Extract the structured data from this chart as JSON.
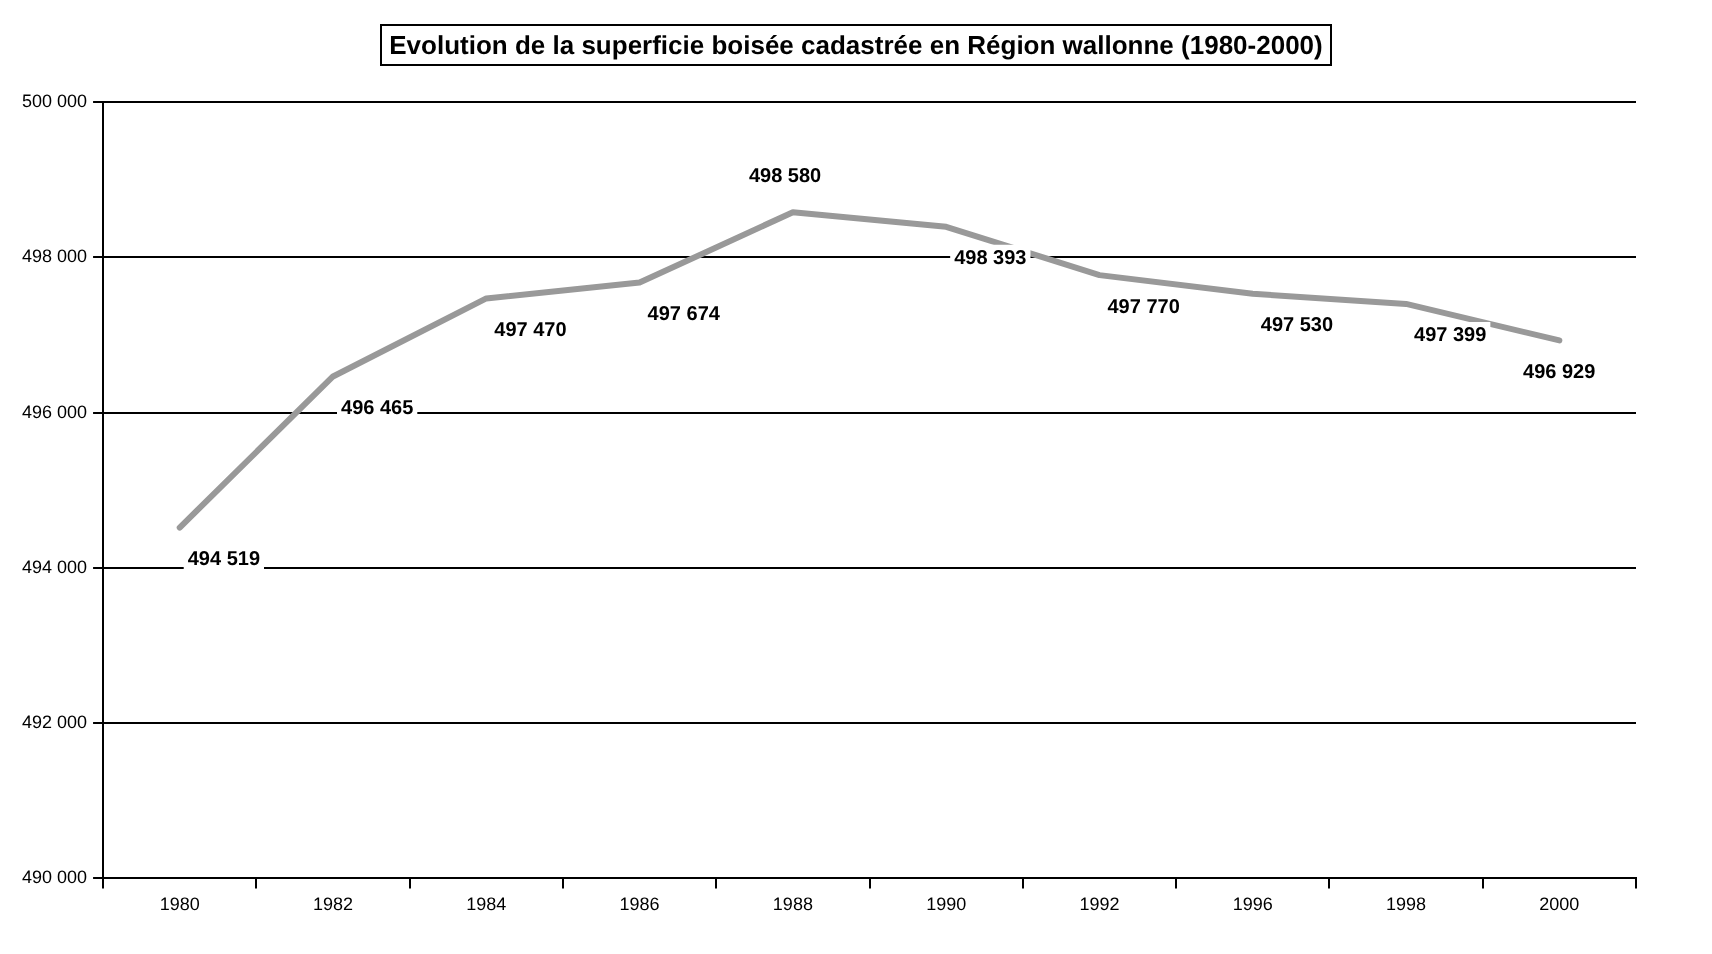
{
  "chart_data": {
    "type": "line",
    "title": "Evolution de la superficie boisée cadastrée en Région wallonne (1980-2000)",
    "categories": [
      "1980",
      "1982",
      "1984",
      "1986",
      "1988",
      "1990",
      "1992",
      "1996",
      "1998",
      "2000"
    ],
    "series": [
      {
        "color": "#999999",
        "values": [
          494519,
          496465,
          497470,
          497674,
          498580,
          498393,
          497770,
          497530,
          497399,
          496929
        ]
      }
    ],
    "ylim": [
      490000,
      500000
    ],
    "yticks": [
      {
        "value": 490000,
        "label": "490 000"
      },
      {
        "value": 492000,
        "label": "492 000"
      },
      {
        "value": 494000,
        "label": "494 000"
      },
      {
        "value": 496000,
        "label": "496 000"
      },
      {
        "value": 498000,
        "label": "498 000"
      },
      {
        "value": 500000,
        "label": "500 000"
      }
    ],
    "grid": "y",
    "legend": false,
    "marker": "none",
    "line_style": "solid",
    "data_labels": true
  }
}
